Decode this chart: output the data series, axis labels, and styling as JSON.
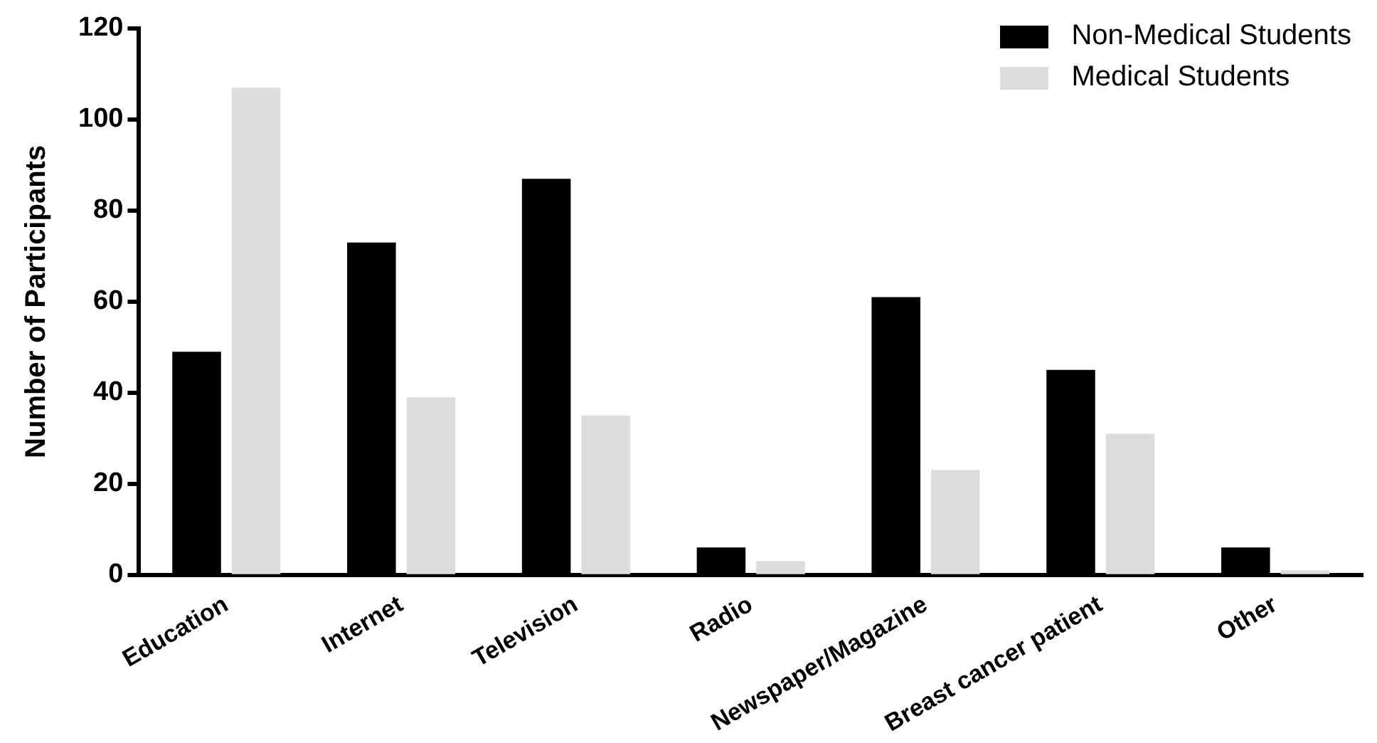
{
  "chart_data": {
    "type": "bar",
    "ylabel": "Number of Participants",
    "categories": [
      "Education",
      "Internet",
      "Television",
      "Radio",
      "Newspaper/Magazine",
      "Breast cancer patient",
      "Other"
    ],
    "series": [
      {
        "name": "Non-Medical Students",
        "color": "#000000",
        "values": [
          49,
          73,
          87,
          6,
          61,
          45,
          6
        ]
      },
      {
        "name": "Medical Students",
        "color": "#dcdcdc",
        "values": [
          107,
          39,
          35,
          3,
          23,
          31,
          1
        ]
      }
    ],
    "ylim": [
      0,
      120
    ],
    "yticks": [
      0,
      20,
      40,
      60,
      80,
      100,
      120
    ],
    "grid": false,
    "legend": "top right"
  }
}
